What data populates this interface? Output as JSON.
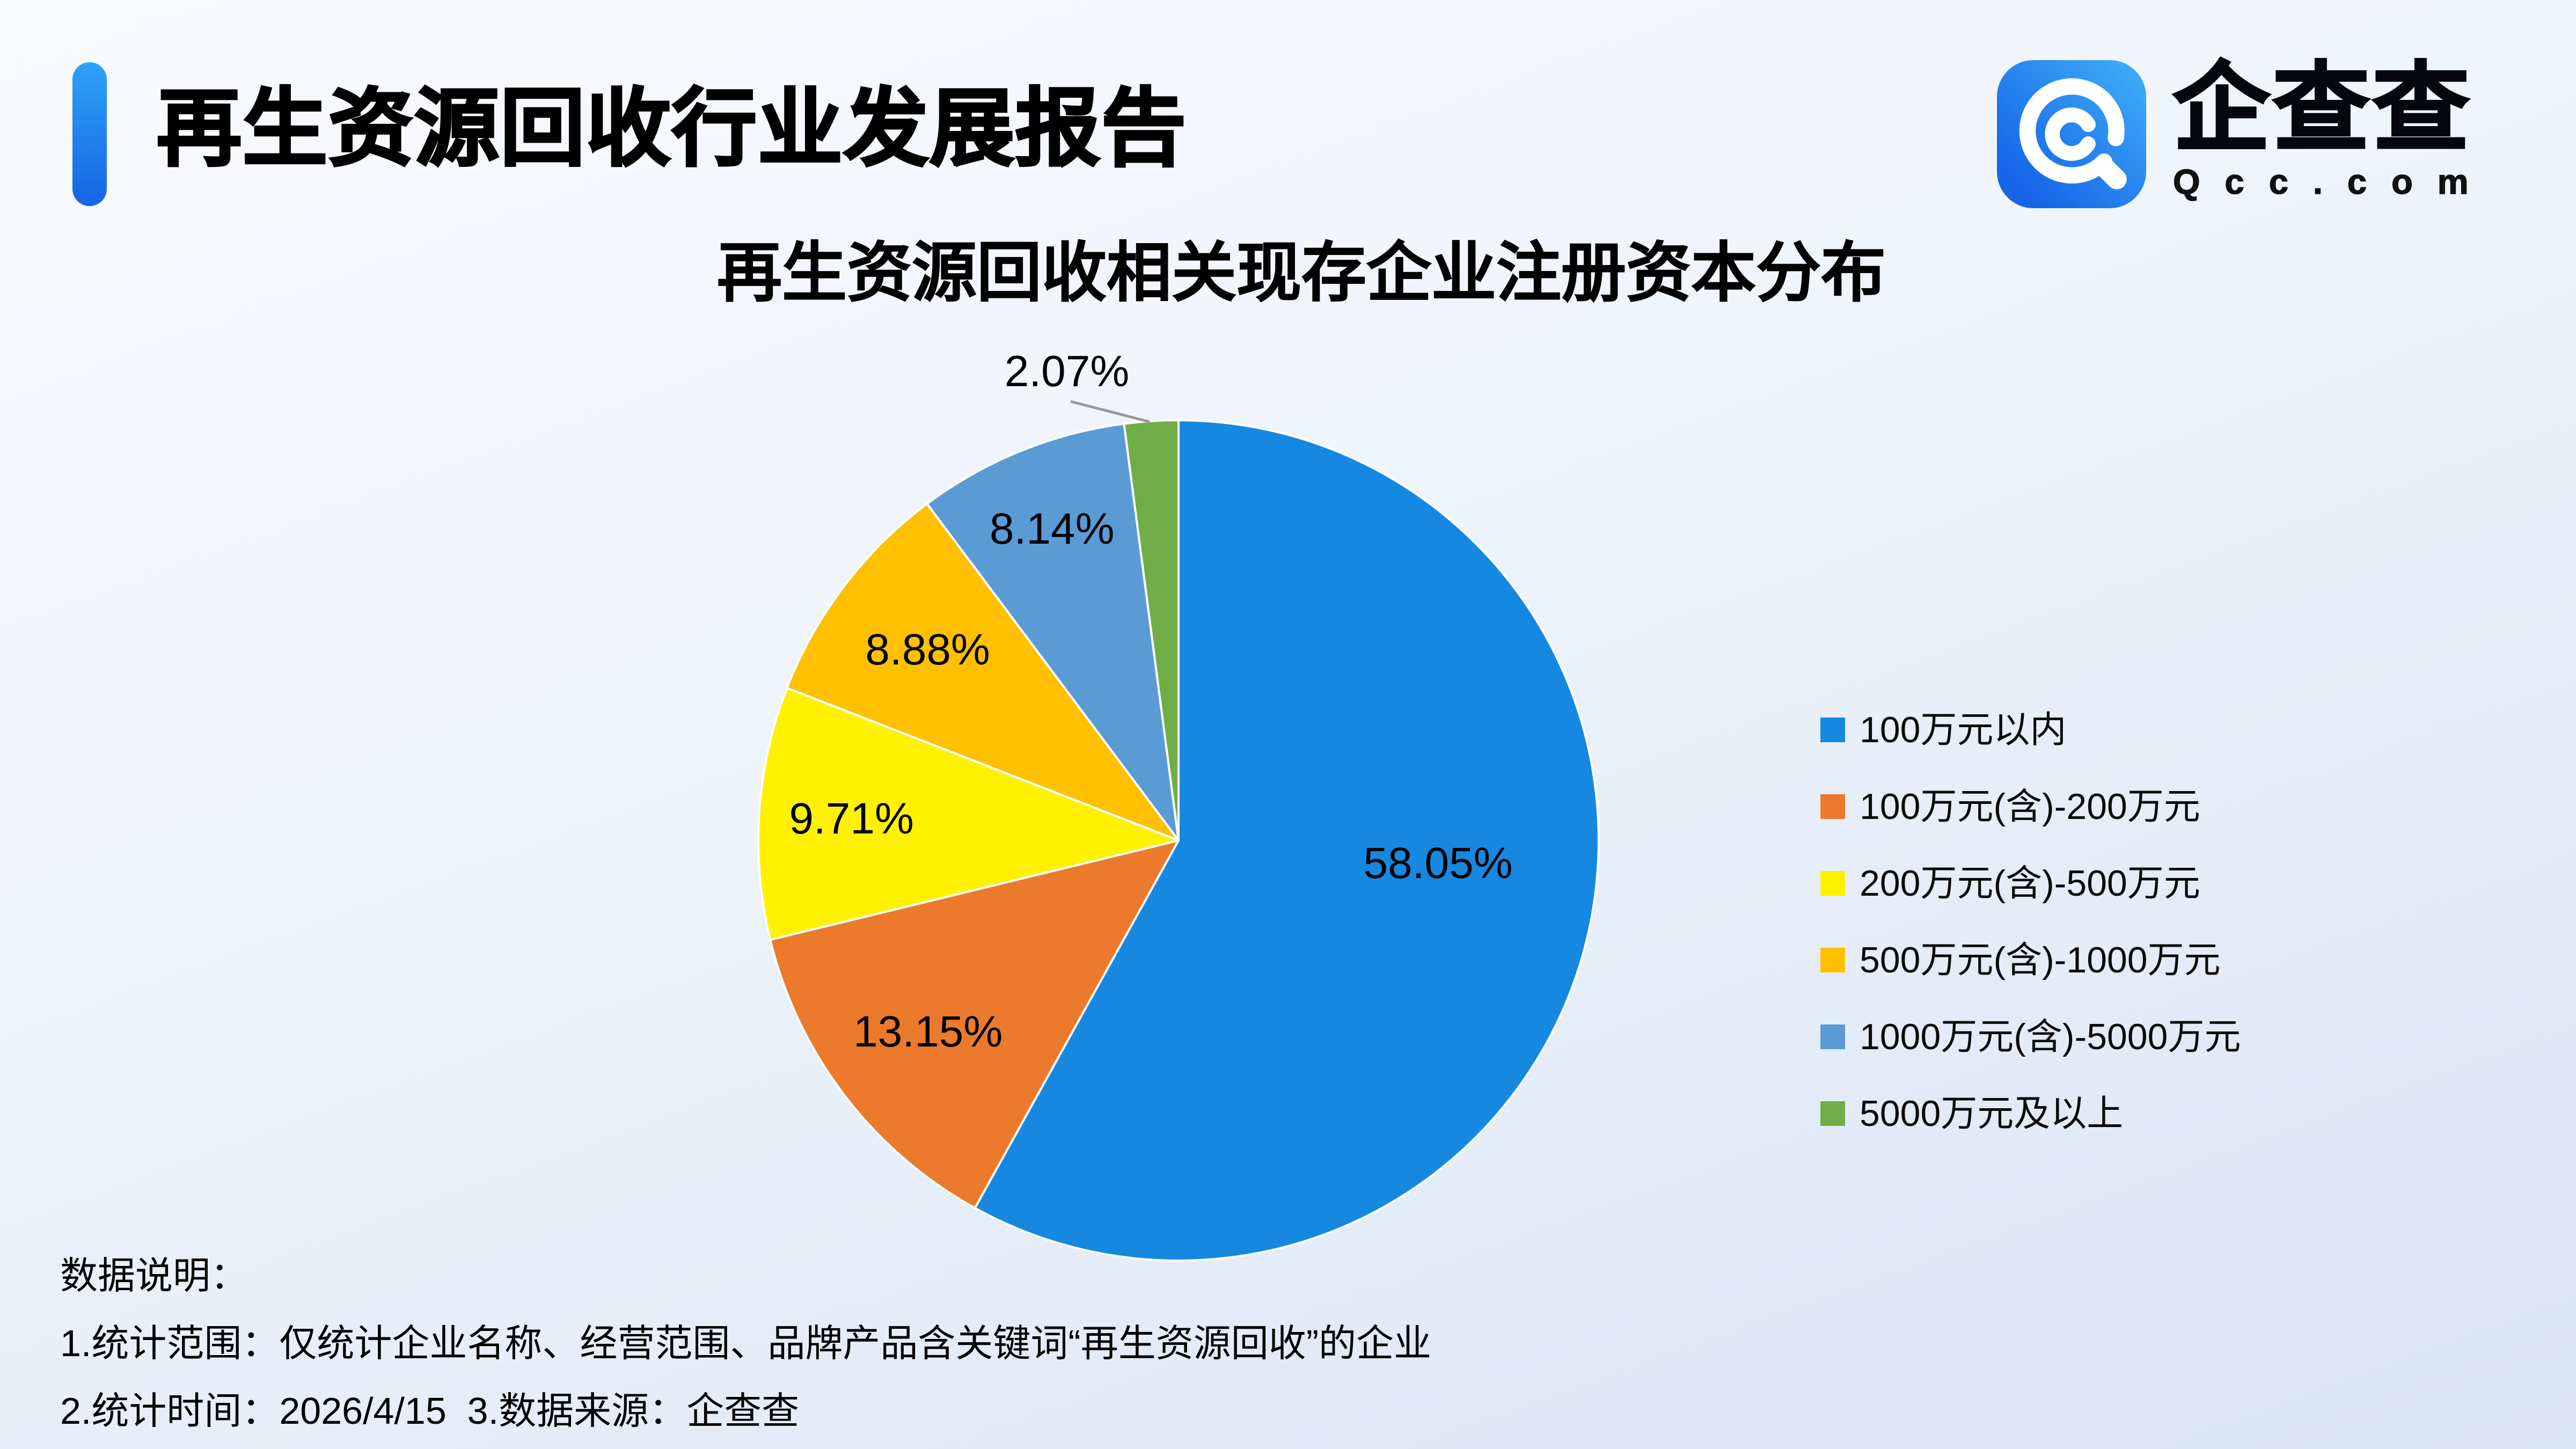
{
  "report": {
    "title": "再生资源回收行业发展报告",
    "brand": {
      "name": "企查查",
      "domain": "Qcc.com"
    }
  },
  "chart_data": {
    "type": "pie",
    "title": "再生资源回收相关现存企业注册资本分布",
    "value_unit": "%",
    "direction": "clockwise",
    "start_angle_deg": 0,
    "legend_position": "right",
    "slices": [
      {
        "label": "100万元以内",
        "value": 58.05,
        "color": "#1788df"
      },
      {
        "label": "100万元(含)-200万元",
        "value": 13.15,
        "color": "#eb7a2d"
      },
      {
        "label": "200万元(含)-500万元",
        "value": 9.71,
        "color": "#fff100"
      },
      {
        "label": "500万元(含)-1000万元",
        "value": 8.88,
        "color": "#ffc000"
      },
      {
        "label": "1000万元(含)-5000万元",
        "value": 8.14,
        "color": "#5b9bd5"
      },
      {
        "label": "5000万元及以上",
        "value": 2.07,
        "color": "#70ad47"
      }
    ],
    "leader_line_color": "#999999"
  },
  "notes": {
    "heading": "数据说明：",
    "line1": "1.统计范围：仅统计企业名称、经营范围、品牌产品含关键词“再生资源回收”的企业",
    "line2": "2.统计时间：2026/4/15  3.数据来源：企查查"
  }
}
